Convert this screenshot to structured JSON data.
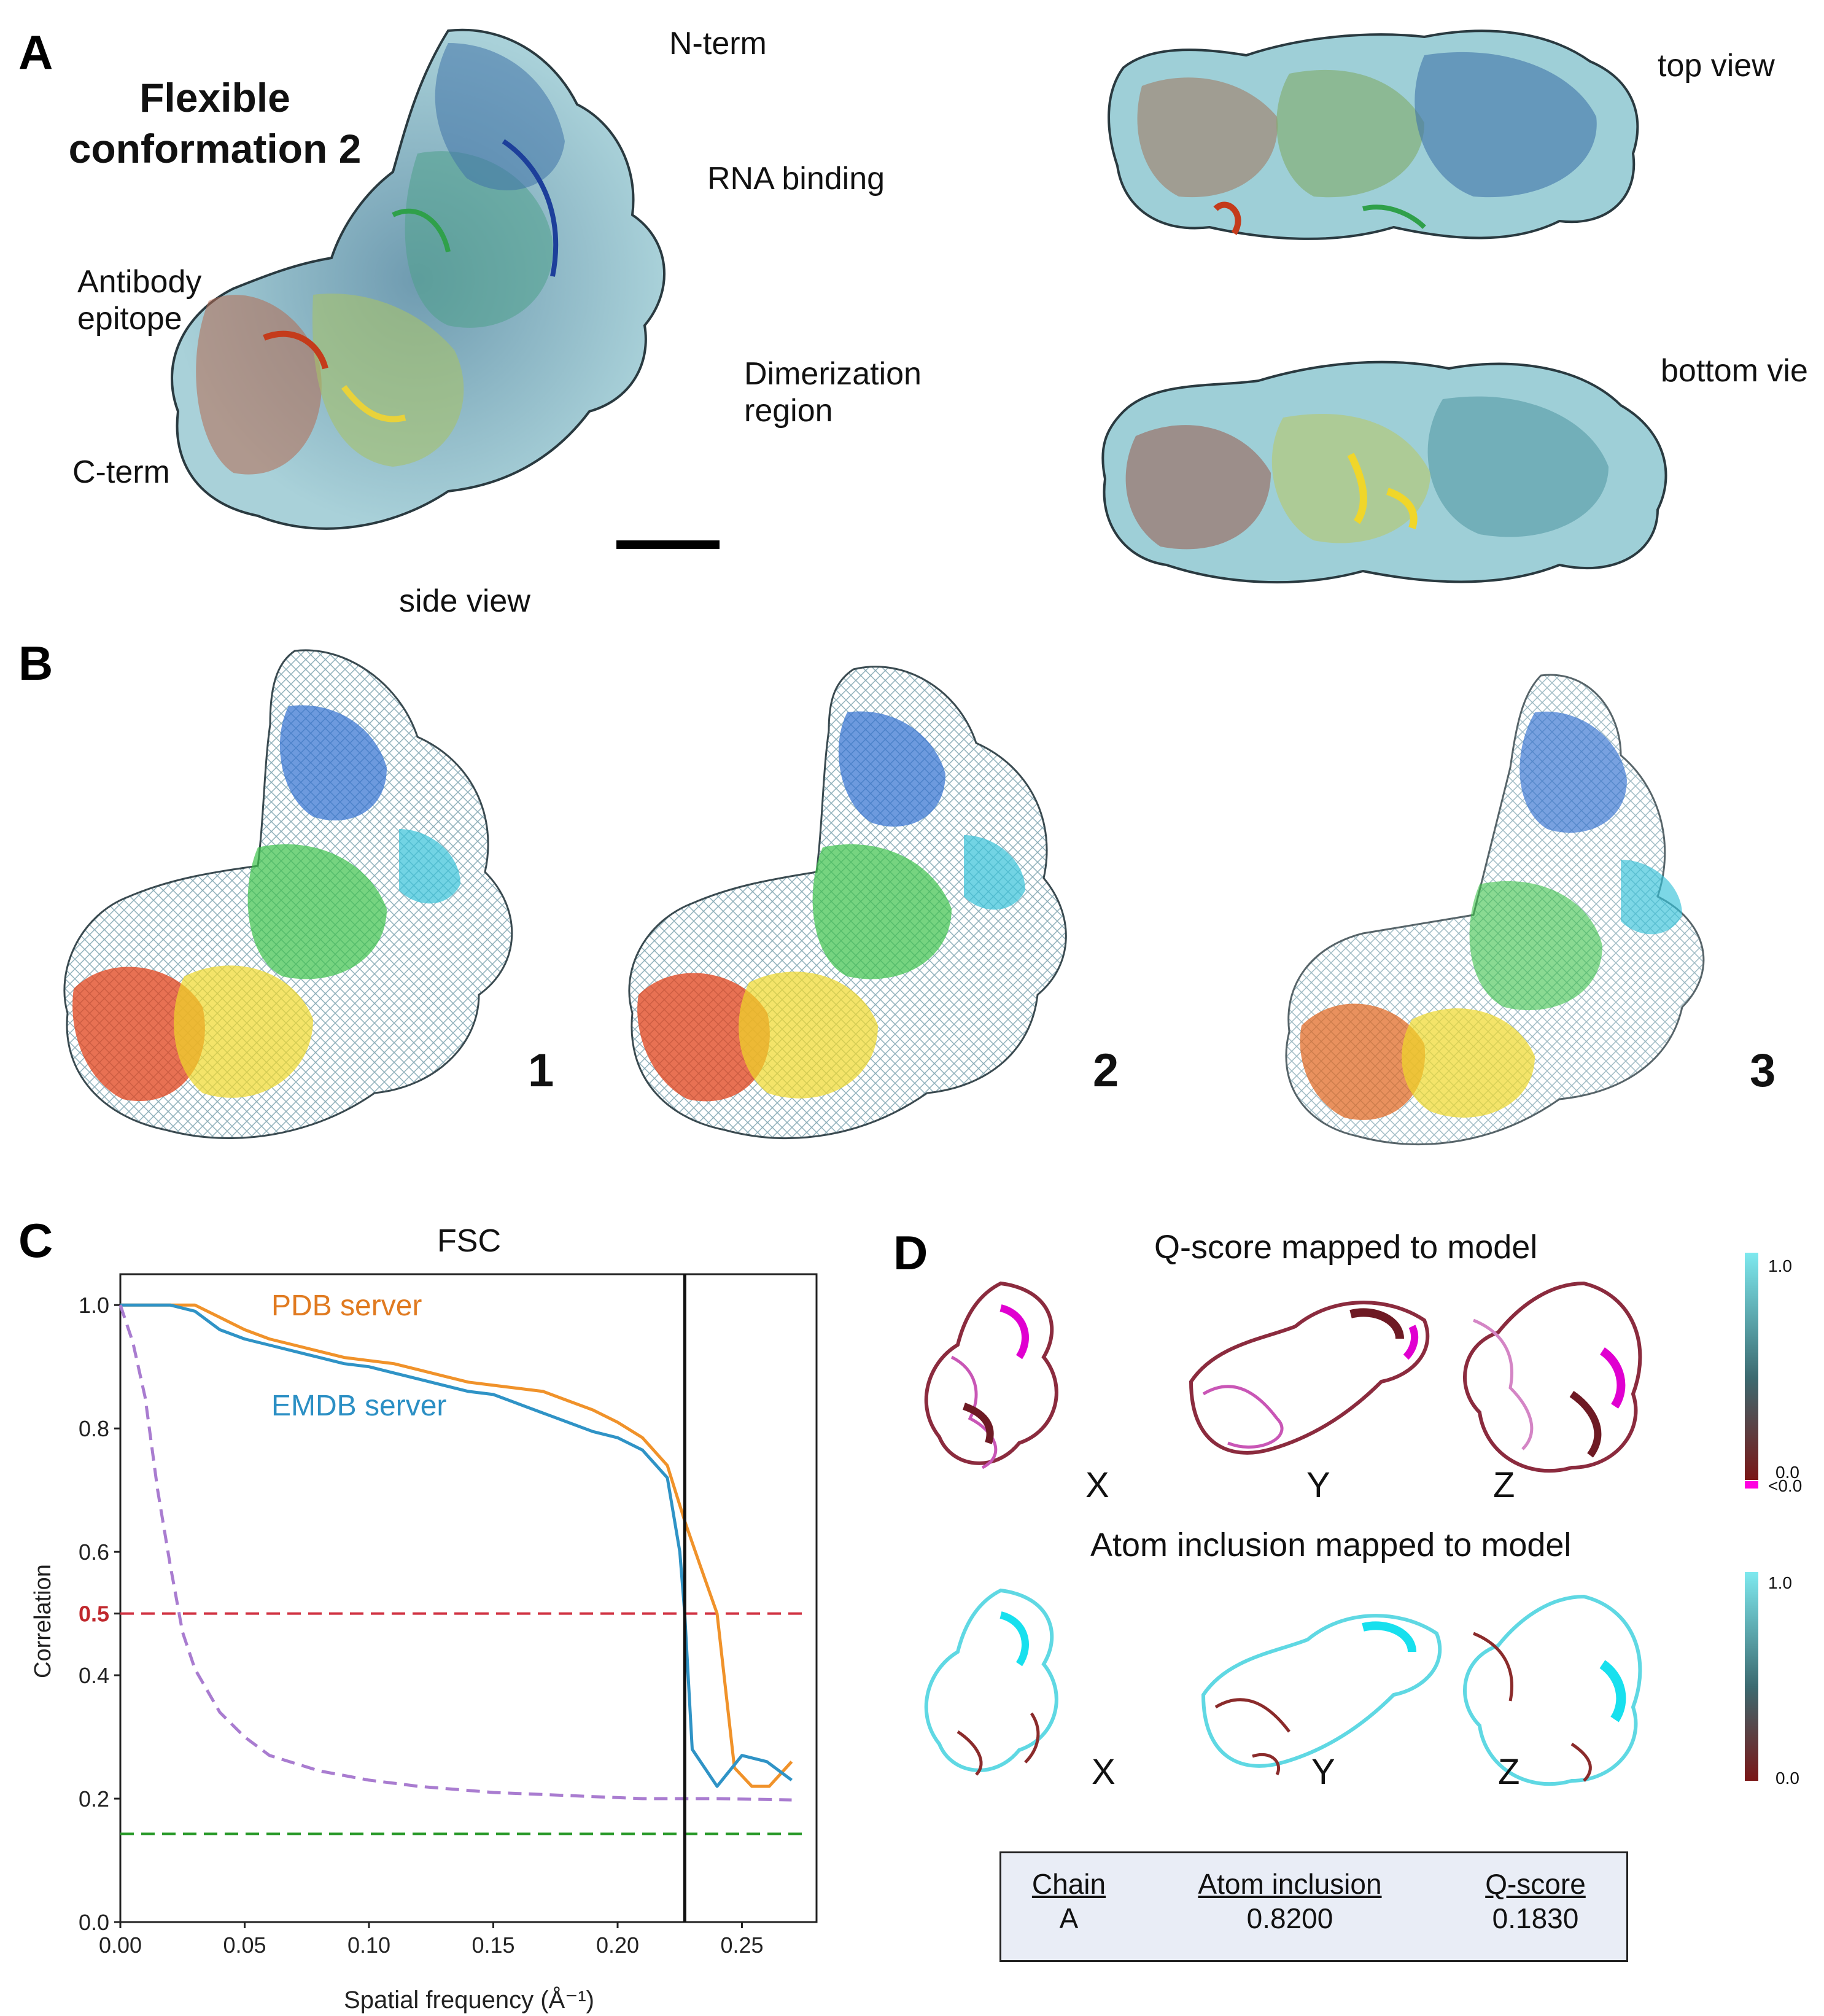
{
  "panel_a": {
    "letter": "A",
    "title_line1": "Flexible",
    "title_line2": "conformation 2",
    "labels": {
      "n_term": "N-term",
      "rna_binding": "RNA binding",
      "antibody_line1": "Antibody",
      "antibody_line2": "epitope",
      "dimerization_line1": "Dimerization",
      "dimerization_line2": "region",
      "c_term": "C-term",
      "side_view": "side view",
      "top_view": "top view",
      "bottom_view": "bottom vie"
    }
  },
  "panel_b": {
    "letter": "B",
    "numbers": [
      "1",
      "2",
      "3"
    ]
  },
  "panel_c": {
    "letter": "C",
    "chart_title": "FSC",
    "legend_pdb": "PDB server",
    "legend_emdb": "EMDB server",
    "y_ticks": [
      "0.0",
      "0.2",
      "0.4",
      "0.5",
      "0.6",
      "0.8",
      "1.0"
    ],
    "x_ticks": [
      "0.00",
      "0.05",
      "0.10",
      "0.15",
      "0.20",
      "0.25"
    ],
    "ylabel": "Correlation",
    "xlabel": "Spatial frequency (Å⁻¹)"
  },
  "chart_data": {
    "type": "line",
    "title": "FSC",
    "xlabel": "Spatial frequency (Å⁻¹)",
    "ylabel": "Correlation",
    "xlim": [
      0.0,
      0.28
    ],
    "ylim": [
      0.0,
      1.05
    ],
    "series": [
      {
        "name": "PDB server",
        "color": "#f0922a",
        "x": [
          0.0,
          0.01,
          0.02,
          0.03,
          0.04,
          0.05,
          0.06,
          0.07,
          0.08,
          0.09,
          0.1,
          0.11,
          0.12,
          0.13,
          0.14,
          0.15,
          0.16,
          0.17,
          0.18,
          0.19,
          0.2,
          0.21,
          0.22,
          0.227,
          0.233,
          0.24,
          0.247,
          0.254,
          0.261,
          0.27
        ],
        "y": [
          1.0,
          1.0,
          1.0,
          1.0,
          0.98,
          0.96,
          0.945,
          0.935,
          0.925,
          0.915,
          0.91,
          0.905,
          0.895,
          0.885,
          0.875,
          0.87,
          0.865,
          0.86,
          0.845,
          0.83,
          0.81,
          0.785,
          0.74,
          0.65,
          0.58,
          0.5,
          0.25,
          0.22,
          0.22,
          0.26
        ]
      },
      {
        "name": "EMDB server",
        "color": "#2f93c6",
        "x": [
          0.0,
          0.01,
          0.02,
          0.03,
          0.04,
          0.05,
          0.06,
          0.07,
          0.08,
          0.09,
          0.1,
          0.11,
          0.12,
          0.13,
          0.14,
          0.15,
          0.16,
          0.17,
          0.18,
          0.19,
          0.2,
          0.21,
          0.22,
          0.225,
          0.227,
          0.23,
          0.24,
          0.25,
          0.26,
          0.27
        ],
        "y": [
          1.0,
          1.0,
          1.0,
          0.99,
          0.96,
          0.945,
          0.935,
          0.925,
          0.915,
          0.905,
          0.9,
          0.89,
          0.88,
          0.87,
          0.86,
          0.855,
          0.84,
          0.825,
          0.81,
          0.795,
          0.785,
          0.765,
          0.72,
          0.6,
          0.5,
          0.28,
          0.22,
          0.27,
          0.26,
          0.23
        ]
      },
      {
        "name": "",
        "color": "#a97cd0",
        "dashed": true,
        "x": [
          0.0,
          0.005,
          0.01,
          0.015,
          0.02,
          0.025,
          0.03,
          0.04,
          0.05,
          0.06,
          0.08,
          0.1,
          0.12,
          0.15,
          0.18,
          0.21,
          0.24,
          0.27
        ],
        "y": [
          1.0,
          0.94,
          0.85,
          0.7,
          0.58,
          0.47,
          0.41,
          0.34,
          0.3,
          0.27,
          0.245,
          0.23,
          0.22,
          0.21,
          0.205,
          0.2,
          0.2,
          0.198
        ]
      }
    ],
    "hlines": [
      {
        "y": 0.5,
        "color": "#d03040",
        "dashed": true
      },
      {
        "y": 0.143,
        "color": "#2a9a2a",
        "dashed": true
      }
    ],
    "vline": {
      "x": 0.227,
      "color": "#111111"
    },
    "grid": false
  },
  "panel_d": {
    "letter": "D",
    "qscore_title": "Q-score mapped to model",
    "atom_title": "Atom inclusion mapped to model",
    "views": [
      "X",
      "Y",
      "Z"
    ],
    "cbar_q": {
      "top": "1.0",
      "bottom": "0.0",
      "neg": "<0.0"
    },
    "cbar_a": {
      "top": "1.0",
      "bottom": "0.0"
    },
    "table": {
      "headers": [
        "Chain",
        "Atom inclusion",
        "Q-score"
      ],
      "row": [
        "A",
        "0.8200",
        "0.1830"
      ]
    }
  }
}
